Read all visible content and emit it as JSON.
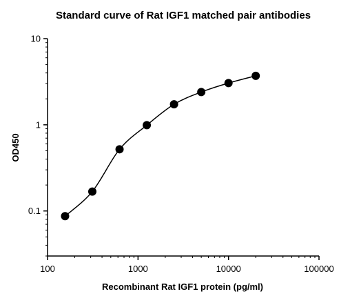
{
  "chart_data": {
    "type": "scatter",
    "title": "Standard curve of Rat IGF1 matched pair antibodies",
    "xlabel": "Recombinant Rat IGF1 protein (pg/ml)",
    "ylabel": "OD450",
    "x_scale": "log",
    "y_scale": "log",
    "xlim": [
      100,
      100000
    ],
    "ylim": [
      0.03,
      10
    ],
    "x_ticks": [
      100,
      1000,
      10000,
      100000
    ],
    "x_tick_labels": [
      "100",
      "1000",
      "10000",
      "100000"
    ],
    "y_ticks": [
      0.1,
      1,
      10
    ],
    "y_tick_labels": [
      "0.1",
      "1",
      "10"
    ],
    "grid": false,
    "series": [
      {
        "points": [
          {
            "x": 156.25,
            "y": 0.087
          },
          {
            "x": 312.5,
            "y": 0.168
          },
          {
            "x": 625,
            "y": 0.52
          },
          {
            "x": 1250,
            "y": 0.99
          },
          {
            "x": 2500,
            "y": 1.73
          },
          {
            "x": 5000,
            "y": 2.4
          },
          {
            "x": 10000,
            "y": 3.05
          },
          {
            "x": 20000,
            "y": 3.7
          }
        ],
        "fit": "sigmoidal curve fit"
      }
    ],
    "colors": {
      "marker": "#000000",
      "line": "#000000",
      "axis": "#000000"
    }
  }
}
